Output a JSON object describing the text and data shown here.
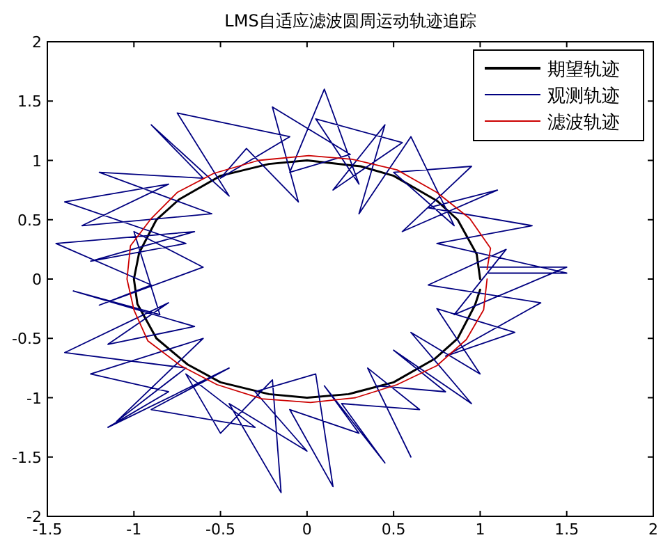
{
  "chart_data": {
    "type": "line",
    "title": "LMS自适应滤波圆周运动轨迹追踪",
    "xlim": [
      -1.5,
      2
    ],
    "ylim": [
      -2,
      2
    ],
    "xticks": [
      -1.5,
      -1,
      -0.5,
      0,
      0.5,
      1,
      1.5,
      2
    ],
    "yticks": [
      -2,
      -1.5,
      -1,
      -0.5,
      0,
      0.5,
      1,
      1.5,
      2
    ],
    "grid": false,
    "legend": "top right",
    "marker": "none",
    "line_style": "solid",
    "series": [
      {
        "name": "期望轨迹",
        "color": "#000000",
        "x": [
          1,
          0.98,
          0.87,
          0.75,
          0.5,
          0.31,
          0,
          -0.22,
          -0.5,
          -0.74,
          -0.87,
          -0.97,
          -1,
          -0.98,
          -0.87,
          -0.69,
          -0.5,
          -0.22,
          0,
          0.24,
          0.5,
          0.74,
          0.87,
          0.97,
          1.0
        ],
        "values": [
          0,
          0.21,
          0.5,
          0.66,
          0.87,
          0.95,
          1,
          0.97,
          0.87,
          0.67,
          0.5,
          0.22,
          0,
          -0.21,
          -0.5,
          -0.72,
          -0.87,
          -0.97,
          -1,
          -0.97,
          -0.87,
          -0.67,
          -0.5,
          -0.22,
          -0.09
        ]
      },
      {
        "name": "观测轨迹",
        "color": "#000080",
        "x": [
          1.05,
          1.5,
          0.75,
          1.3,
          0.7,
          1.1,
          0.55,
          0.95,
          0.5,
          0.85,
          0.6,
          0.3,
          0.45,
          0.15,
          0.55,
          0.05,
          0.3,
          0.1,
          -0.1,
          0.25,
          -0.2,
          -0.05,
          -0.35,
          -0.5,
          -0.1,
          -0.75,
          -0.45,
          -0.9,
          -0.6,
          -1.2,
          -0.55,
          -1.3,
          -0.8,
          -1.4,
          -0.7,
          -1.25,
          -0.65,
          -1.45,
          -0.9,
          -1.2,
          -0.6,
          -1.0,
          -0.85,
          -1.35,
          -0.65,
          -1.15,
          -0.8,
          -1.4,
          -0.7,
          -1.1,
          -0.6,
          -1.25,
          -0.8,
          -1.15,
          -0.45,
          -0.9,
          -0.3,
          -0.7,
          -0.5,
          -0.2,
          -0.15,
          -0.45,
          0.0,
          -0.3,
          0.05,
          0.15,
          -0.1,
          0.3,
          0.1,
          0.45,
          0.2,
          0.65,
          0.35,
          0.6,
          0.4,
          0.8,
          0.5,
          0.95,
          0.6,
          1.0,
          0.75,
          1.2,
          0.8,
          1.35,
          0.7,
          1.15,
          0.85,
          1.5,
          1.0
        ],
        "values": [
          0.05,
          0.05,
          0.3,
          0.45,
          0.6,
          0.75,
          0.4,
          0.95,
          0.9,
          0.45,
          1.2,
          0.55,
          1.3,
          0.75,
          1.15,
          1.35,
          0.8,
          1.6,
          0.9,
          1.05,
          1.45,
          0.65,
          1.1,
          0.85,
          1.2,
          1.4,
          0.7,
          1.3,
          0.85,
          0.9,
          0.55,
          0.45,
          0.8,
          0.65,
          0.3,
          0.15,
          0.4,
          0.3,
          -0.05,
          -0.22,
          0.1,
          0.4,
          -0.3,
          -0.1,
          -0.4,
          -0.55,
          -0.2,
          -0.62,
          -0.75,
          -1.2,
          -0.5,
          -0.8,
          -0.95,
          -1.25,
          -0.75,
          -1.1,
          -1.25,
          -0.8,
          -1.3,
          -0.85,
          -1.8,
          -1.05,
          -1.45,
          -0.95,
          -0.8,
          -1.75,
          -1.1,
          -1.3,
          -0.9,
          -1.55,
          -1.05,
          -1.1,
          -0.75,
          -1.5,
          -0.9,
          -0.95,
          -0.6,
          -1.05,
          -0.45,
          -0.8,
          -0.25,
          -0.45,
          -0.65,
          -0.2,
          -0.05,
          0.25,
          -0.3,
          0.1,
          0.1
        ]
      },
      {
        "name": "滤波轨迹",
        "color": "#cc0000",
        "x": [
          1.04,
          1.06,
          0.94,
          0.75,
          0.52,
          0.26,
          0.01,
          -0.28,
          -0.54,
          -0.75,
          -0.9,
          -1.02,
          -1.04,
          -1.0,
          -0.92,
          -0.73,
          -0.52,
          -0.26,
          0.02,
          0.28,
          0.52,
          0.75,
          0.92,
          1.02,
          1.04
        ],
        "values": [
          0.08,
          0.26,
          0.51,
          0.73,
          0.92,
          1.01,
          1.04,
          1.0,
          0.89,
          0.73,
          0.51,
          0.28,
          0.0,
          -0.26,
          -0.52,
          -0.73,
          -0.89,
          -1.01,
          -1.04,
          -1.0,
          -0.89,
          -0.73,
          -0.51,
          -0.26,
          0.0
        ]
      }
    ]
  }
}
